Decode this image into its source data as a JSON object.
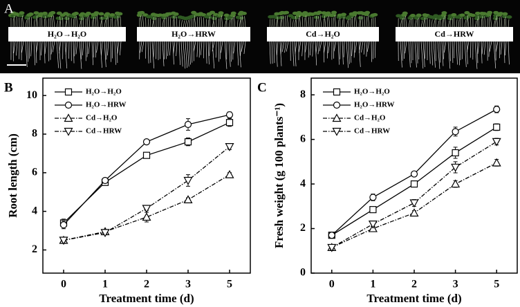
{
  "panel_a": {
    "letter": "A",
    "labels": [
      "H₂O→H₂O",
      "H₂O→HRW",
      "Cd→H₂O",
      "Cd→HRW"
    ]
  },
  "chart_data": [
    {
      "type": "line",
      "letter": "B",
      "x_label": "Treatment time (d)",
      "y_label": "Root length (cm)",
      "categories": [
        "0",
        "1",
        "2",
        "3",
        "5"
      ],
      "ylim": [
        0.8,
        10.9
      ],
      "yticks": [
        2,
        4,
        6,
        8,
        10
      ],
      "series": [
        {
          "name": "H₂O→H₂O",
          "color": "#000000",
          "line_style": "solid",
          "marker": "square",
          "values": [
            3.4,
            5.5,
            6.9,
            7.6,
            8.6
          ],
          "errors": [
            0.2,
            0.1,
            0.1,
            0.2,
            0.2
          ]
        },
        {
          "name": "H₂O→HRW",
          "color": "#000000",
          "line_style": "solid",
          "marker": "circle",
          "values": [
            3.3,
            5.6,
            7.6,
            8.5,
            9.0
          ],
          "errors": [
            0.2,
            0.1,
            0.1,
            0.3,
            0.15
          ]
        },
        {
          "name": "Cd→H₂O",
          "color": "#000000",
          "line_style": "dashdot",
          "marker": "triangle-up",
          "values": [
            2.5,
            2.95,
            3.7,
            4.6,
            5.9
          ],
          "errors": [
            0.15,
            0.1,
            0.25,
            0.1,
            0.1
          ]
        },
        {
          "name": "Cd→HRW",
          "color": "#000000",
          "line_style": "dashdot",
          "marker": "triangle-down",
          "values": [
            2.5,
            2.9,
            4.15,
            5.6,
            7.35
          ],
          "errors": [
            0.15,
            0.1,
            0.1,
            0.3,
            0.15
          ]
        }
      ]
    },
    {
      "type": "line",
      "letter": "C",
      "x_label": "Treatment time (d)",
      "y_label": "Fresh weight (g 100 plants⁻¹)",
      "categories": [
        "0",
        "1",
        "2",
        "3",
        "5"
      ],
      "ylim": [
        0,
        8.75
      ],
      "yticks": [
        0,
        2,
        4,
        6,
        8
      ],
      "series": [
        {
          "name": "H₂O→H₂O",
          "color": "#000000",
          "line_style": "solid",
          "marker": "square",
          "values": [
            1.7,
            2.85,
            4.0,
            5.4,
            6.55
          ],
          "errors": [
            0.1,
            0.1,
            0.1,
            0.25,
            0.15
          ]
        },
        {
          "name": "H₂O→HRW",
          "color": "#000000",
          "line_style": "solid",
          "marker": "circle",
          "values": [
            1.7,
            3.4,
            4.45,
            6.35,
            7.35
          ],
          "errors": [
            0.1,
            0.15,
            0.1,
            0.2,
            0.15
          ]
        },
        {
          "name": "Cd→H₂O",
          "color": "#000000",
          "line_style": "dashdot",
          "marker": "triangle-up",
          "values": [
            1.15,
            2.0,
            2.7,
            4.0,
            4.95
          ],
          "errors": [
            0.1,
            0.1,
            0.1,
            0.15,
            0.15
          ]
        },
        {
          "name": "Cd→HRW",
          "color": "#000000",
          "line_style": "dashdot",
          "marker": "triangle-down",
          "values": [
            1.15,
            2.2,
            3.15,
            4.75,
            5.9
          ],
          "errors": [
            0.1,
            0.1,
            0.15,
            0.25,
            0.15
          ]
        }
      ]
    }
  ]
}
